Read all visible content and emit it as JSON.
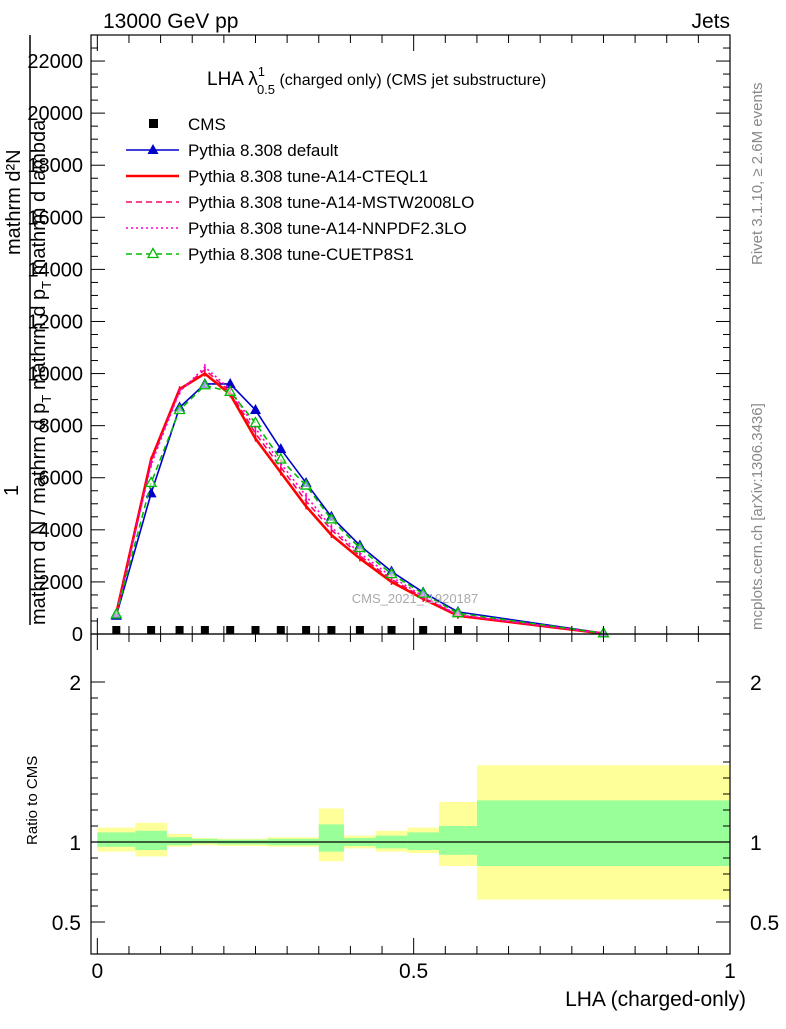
{
  "header": {
    "energy_label": "13000 GeV pp",
    "process_label": "Jets"
  },
  "side_labels": {
    "rivet": "Rivet 3.1.10, ≥ 2.6M events",
    "mcplots": "mcplots.cern.ch [arXiv:1306.3436]"
  },
  "watermark": "CMS_2021_I1920187",
  "chart_data": [
    {
      "type": "line",
      "title_main": "LHA λ",
      "title_sup": "1",
      "title_sub": "0.5",
      "title_rest": " (charged only) (CMS jet substructure)",
      "ylabel_top": "mathrm d²N",
      "ylabel_mid": "mathrm d p",
      "ylabel_sub": "T",
      "ylabel_tail": " mathrm d lambda",
      "ylabel_one": "1",
      "ylabel_bottom": "mathrm d N / mathrm d p",
      "ylabel_bottom_sub": "T",
      "ylim": [
        0,
        23000
      ],
      "xlim": [
        -0.01,
        1.0
      ],
      "yticks": [
        {
          "v": 0,
          "label": "0"
        },
        {
          "v": 2000,
          "label": "2000"
        },
        {
          "v": 4000,
          "label": "4000"
        },
        {
          "v": 6000,
          "label": "6000"
        },
        {
          "v": 8000,
          "label": "8000"
        },
        {
          "v": 10000,
          "label": "10000"
        },
        {
          "v": 12000,
          "label": "12000"
        },
        {
          "v": 14000,
          "label": "14000"
        },
        {
          "v": 16000,
          "label": "16000"
        },
        {
          "v": 18000,
          "label": "18000"
        },
        {
          "v": 20000,
          "label": "20000"
        },
        {
          "v": 22000,
          "label": "22000"
        }
      ],
      "x": [
        0.03,
        0.085,
        0.13,
        0.17,
        0.21,
        0.25,
        0.29,
        0.33,
        0.37,
        0.415,
        0.465,
        0.515,
        0.57,
        0.8
      ],
      "data_points": {
        "name": "CMS",
        "x": [
          0.03,
          0.085,
          0.13,
          0.17,
          0.21,
          0.25,
          0.29,
          0.33,
          0.37,
          0.415,
          0.465,
          0.515,
          0.57
        ],
        "y": [
          30,
          30,
          30,
          30,
          30,
          30,
          30,
          30,
          30,
          30,
          30,
          30,
          30
        ]
      },
      "series": [
        {
          "name": "Pythia 8.308 default",
          "color": "#0000cc",
          "style": "solid",
          "marker": "triangle-filled",
          "values": [
            700,
            5400,
            8700,
            9600,
            9600,
            8600,
            7100,
            5800,
            4500,
            3400,
            2400,
            1600,
            850,
            30
          ]
        },
        {
          "name": "Pythia 8.308 tune-A14-CTEQL1",
          "color": "#ff0000",
          "style": "solid-thick",
          "marker": "none",
          "values": [
            800,
            6700,
            9400,
            10000,
            9200,
            7500,
            6200,
            4900,
            3800,
            2900,
            2000,
            1350,
            700,
            20
          ]
        },
        {
          "name": "Pythia 8.308 tune-A14-MSTW2008LO",
          "color": "#ff0066",
          "style": "dashed",
          "marker": "none",
          "values": [
            790,
            6600,
            9350,
            10150,
            9300,
            7700,
            6400,
            5100,
            4000,
            3000,
            2100,
            1400,
            720,
            22
          ]
        },
        {
          "name": "Pythia 8.308 tune-A14-NNPDF2.3LO",
          "color": "#ff00cc",
          "style": "dotted",
          "marker": "none",
          "values": [
            780,
            6500,
            9300,
            10250,
            9400,
            7900,
            6550,
            5300,
            4100,
            3100,
            2200,
            1450,
            740,
            22
          ]
        },
        {
          "name": "Pythia 8.308 tune-CUETP8S1",
          "color": "#00bb00",
          "style": "dashed",
          "marker": "triangle-open",
          "values": [
            750,
            5800,
            8600,
            9550,
            9300,
            8100,
            6700,
            5700,
            4400,
            3300,
            2300,
            1550,
            800,
            25
          ]
        }
      ],
      "legend": "top-left"
    },
    {
      "type": "area",
      "ylabel": "Ratio to CMS",
      "ylim": [
        0.3,
        2.3
      ],
      "xlim": [
        -0.01,
        1.0
      ],
      "yticks": [
        {
          "v": 0.5,
          "label": "0.5"
        },
        {
          "v": 1,
          "label": "1"
        },
        {
          "v": 2,
          "label": "2"
        }
      ],
      "xticks": [
        {
          "v": 0,
          "label": "0"
        },
        {
          "v": 0.5,
          "label": "0.5"
        },
        {
          "v": 1,
          "label": "1"
        }
      ],
      "xlabel": "LHA (charged-only)",
      "reference_line": 1,
      "bands": [
        {
          "x0": 0.0,
          "x1": 0.06,
          "inner": [
            0.97,
            1.06
          ],
          "outer": [
            0.94,
            1.09
          ]
        },
        {
          "x0": 0.06,
          "x1": 0.11,
          "inner": [
            0.95,
            1.07
          ],
          "outer": [
            0.91,
            1.12
          ]
        },
        {
          "x0": 0.11,
          "x1": 0.15,
          "inner": [
            0.98,
            1.03
          ],
          "outer": [
            0.97,
            1.05
          ]
        },
        {
          "x0": 0.15,
          "x1": 0.19,
          "inner": [
            0.99,
            1.02
          ],
          "outer": [
            0.98,
            1.025
          ]
        },
        {
          "x0": 0.19,
          "x1": 0.23,
          "inner": [
            0.985,
            1.015
          ],
          "outer": [
            0.975,
            1.02
          ]
        },
        {
          "x0": 0.23,
          "x1": 0.27,
          "inner": [
            0.985,
            1.015
          ],
          "outer": [
            0.975,
            1.02
          ]
        },
        {
          "x0": 0.27,
          "x1": 0.31,
          "inner": [
            0.98,
            1.02
          ],
          "outer": [
            0.97,
            1.03
          ]
        },
        {
          "x0": 0.31,
          "x1": 0.35,
          "inner": [
            0.98,
            1.02
          ],
          "outer": [
            0.97,
            1.03
          ]
        },
        {
          "x0": 0.35,
          "x1": 0.39,
          "inner": [
            0.94,
            1.11
          ],
          "outer": [
            0.88,
            1.21
          ]
        },
        {
          "x0": 0.39,
          "x1": 0.44,
          "inner": [
            0.975,
            1.025
          ],
          "outer": [
            0.96,
            1.04
          ]
        },
        {
          "x0": 0.44,
          "x1": 0.49,
          "inner": [
            0.96,
            1.04
          ],
          "outer": [
            0.94,
            1.07
          ]
        },
        {
          "x0": 0.49,
          "x1": 0.54,
          "inner": [
            0.95,
            1.06
          ],
          "outer": [
            0.93,
            1.09
          ]
        },
        {
          "x0": 0.54,
          "x1": 0.6,
          "inner": [
            0.92,
            1.1
          ],
          "outer": [
            0.85,
            1.25
          ]
        },
        {
          "x0": 0.6,
          "x1": 1.0,
          "inner": [
            0.85,
            1.26
          ],
          "outer": [
            0.64,
            1.48
          ]
        }
      ]
    }
  ]
}
